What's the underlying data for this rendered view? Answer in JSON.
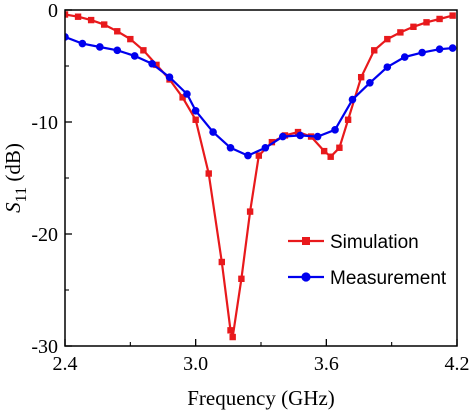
{
  "chart_data": {
    "type": "line",
    "xlabel": "Frequency (GHz)",
    "ylabel_main": "S",
    "ylabel_sub": "11",
    "ylabel_unit": " (dB)",
    "xlim": [
      2.4,
      4.2
    ],
    "ylim": [
      -30,
      0
    ],
    "x_ticks": [
      2.4,
      3.0,
      3.6,
      4.2
    ],
    "x_tick_labels": [
      "2.4",
      "3.0",
      "3.6",
      "4.2"
    ],
    "y_ticks": [
      0,
      -10,
      -20,
      -30
    ],
    "y_tick_labels": [
      "0",
      "-10",
      "-20",
      "-30"
    ],
    "legend_position": "center-right",
    "series": [
      {
        "name": "Simulation",
        "color": "#e8191c",
        "marker": "square",
        "points": [
          [
            2.4,
            -0.4
          ],
          [
            2.46,
            -0.6
          ],
          [
            2.52,
            -0.9
          ],
          [
            2.58,
            -1.3
          ],
          [
            2.64,
            -1.9
          ],
          [
            2.7,
            -2.6
          ],
          [
            2.76,
            -3.6
          ],
          [
            2.82,
            -4.9
          ],
          [
            2.88,
            -6.2
          ],
          [
            2.94,
            -7.8
          ],
          [
            3.0,
            -9.8
          ],
          [
            3.06,
            -14.6
          ],
          [
            3.12,
            -22.5
          ],
          [
            3.16,
            -28.6
          ],
          [
            3.17,
            -29.2
          ],
          [
            3.21,
            -24.0
          ],
          [
            3.25,
            -18.0
          ],
          [
            3.29,
            -13.0
          ],
          [
            3.35,
            -11.8
          ],
          [
            3.41,
            -11.2
          ],
          [
            3.47,
            -10.9
          ],
          [
            3.53,
            -11.3
          ],
          [
            3.59,
            -12.6
          ],
          [
            3.62,
            -13.1
          ],
          [
            3.66,
            -12.3
          ],
          [
            3.7,
            -9.8
          ],
          [
            3.76,
            -6.0
          ],
          [
            3.82,
            -3.6
          ],
          [
            3.88,
            -2.6
          ],
          [
            3.94,
            -2.0
          ],
          [
            4.0,
            -1.5
          ],
          [
            4.06,
            -1.1
          ],
          [
            4.12,
            -0.8
          ],
          [
            4.18,
            -0.5
          ]
        ]
      },
      {
        "name": "Measurement",
        "color": "#0000ee",
        "marker": "circle",
        "points": [
          [
            2.4,
            -2.4
          ],
          [
            2.48,
            -3.0
          ],
          [
            2.56,
            -3.3
          ],
          [
            2.64,
            -3.6
          ],
          [
            2.72,
            -4.1
          ],
          [
            2.8,
            -4.8
          ],
          [
            2.88,
            -6.0
          ],
          [
            2.96,
            -7.5
          ],
          [
            3.0,
            -9.0
          ],
          [
            3.08,
            -10.9
          ],
          [
            3.16,
            -12.3
          ],
          [
            3.24,
            -13.0
          ],
          [
            3.32,
            -12.3
          ],
          [
            3.4,
            -11.3
          ],
          [
            3.48,
            -11.2
          ],
          [
            3.56,
            -11.3
          ],
          [
            3.64,
            -10.7
          ],
          [
            3.72,
            -8.0
          ],
          [
            3.8,
            -6.5
          ],
          [
            3.88,
            -5.1
          ],
          [
            3.96,
            -4.2
          ],
          [
            4.04,
            -3.8
          ],
          [
            4.12,
            -3.5
          ],
          [
            4.18,
            -3.4
          ]
        ]
      }
    ]
  }
}
